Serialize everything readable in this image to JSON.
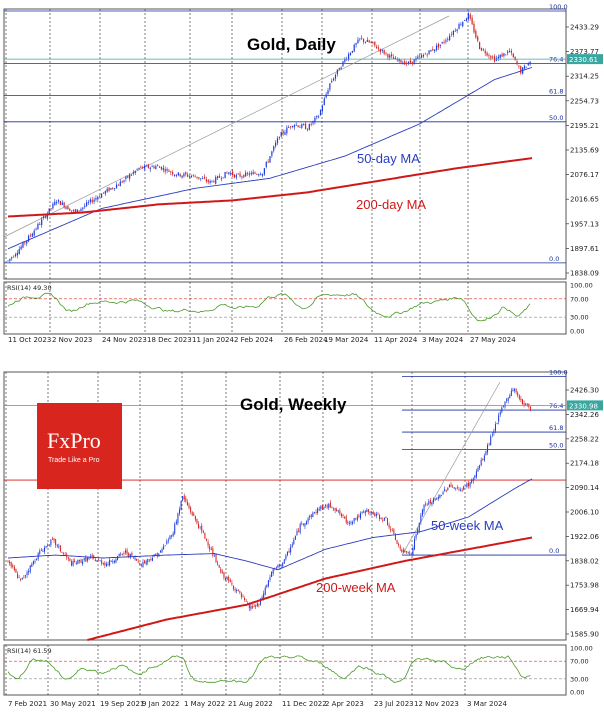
{
  "colors": {
    "bull": "#1e3cdc",
    "bear": "#d42020",
    "ma50": "#2a3cbf",
    "ma200": "#d01818",
    "fib": "#1a2e9c",
    "price_line": "#3aa6a0",
    "rsi_line": "#4a9a2a",
    "rsi_level": "#e03030",
    "logo_bg": "#d8261f"
  },
  "logo": {
    "brand": "FxPro",
    "tagline": "Trade Like a Pro"
  },
  "chart_data": [
    {
      "type": "candlestick",
      "title": "Gold, Daily",
      "ylim": [
        1785,
        2455
      ],
      "y_ticks": [
        "2433.29",
        "2373.77",
        "2314.25",
        "2254.73",
        "2195.21",
        "2135.69",
        "2076.17",
        "2016.65",
        "1957.13",
        "1897.61",
        "1838.09"
      ],
      "x_ticks": [
        "11 Oct 2023",
        "2 Nov 2023",
        "24 Nov 2023",
        "18 Dec 2023",
        "11 Jan 2024",
        "2 Feb 2024",
        "26 Feb 2024",
        "19 Mar 2024",
        "11 Apr 2024",
        "3 May 2024",
        "27 May 2024"
      ],
      "current_price": "2330.61",
      "last_fib_label": "76.4",
      "fib_levels": [
        {
          "label": "100.0",
          "value": 2450
        },
        {
          "label": "76.4",
          "value": 2320
        },
        {
          "label": "61.8",
          "value": 2240
        },
        {
          "label": "50.0",
          "value": 2175
        },
        {
          "label": "0.0",
          "value": 1825
        }
      ],
      "ma_labels": [
        "50-day MA",
        "200-day MA"
      ],
      "anchors": [
        [
          0,
          1830
        ],
        [
          8,
          1870
        ],
        [
          18,
          1930
        ],
        [
          26,
          1980
        ],
        [
          36,
          1950
        ],
        [
          48,
          1990
        ],
        [
          62,
          2030
        ],
        [
          70,
          2060
        ],
        [
          80,
          2065
        ],
        [
          90,
          2045
        ],
        [
          100,
          2040
        ],
        [
          108,
          2025
        ],
        [
          118,
          2050
        ],
        [
          122,
          2040
        ],
        [
          136,
          2050
        ],
        [
          145,
          2140
        ],
        [
          152,
          2170
        ],
        [
          160,
          2160
        ],
        [
          166,
          2190
        ],
        [
          172,
          2270
        ],
        [
          180,
          2330
        ],
        [
          188,
          2380
        ],
        [
          194,
          2370
        ],
        [
          206,
          2330
        ],
        [
          214,
          2320
        ],
        [
          222,
          2340
        ],
        [
          232,
          2370
        ],
        [
          240,
          2410
        ],
        [
          246,
          2440
        ],
        [
          252,
          2360
        ],
        [
          260,
          2330
        ],
        [
          268,
          2350
        ],
        [
          274,
          2300
        ],
        [
          280,
          2330
        ]
      ],
      "ma50_anchors": [
        [
          0,
          1860
        ],
        [
          50,
          1960
        ],
        [
          100,
          2010
        ],
        [
          140,
          2035
        ],
        [
          180,
          2090
        ],
        [
          220,
          2170
        ],
        [
          260,
          2280
        ],
        [
          280,
          2310
        ]
      ],
      "ma200_anchors": [
        [
          0,
          1940
        ],
        [
          40,
          1950
        ],
        [
          80,
          1970
        ],
        [
          120,
          1980
        ],
        [
          160,
          2000
        ],
        [
          200,
          2030
        ],
        [
          240,
          2060
        ],
        [
          280,
          2085
        ]
      ],
      "rsi": {
        "label": "RSI(14) 49.30",
        "ticks": [
          "100.00",
          "70.00",
          "30.00",
          "0.00"
        ],
        "levels": [
          70,
          30
        ]
      }
    },
    {
      "type": "candlestick",
      "title": "Gold,  Weekly",
      "ylim": [
        1530,
        2445
      ],
      "y_ticks": [
        "2426.30",
        "2342.26",
        "2258.22",
        "2174.18",
        "2090.14",
        "2006.10",
        "1922.06",
        "1838.02",
        "1753.98",
        "1669.94",
        "1585.90"
      ],
      "x_ticks": [
        "7 Feb 2021",
        "30 May 2021",
        "19 Sep 2021",
        "9 Jan 2022",
        "1 May 2022",
        "21 Aug 2022",
        "11 Dec 2022",
        "2 Apr 2023",
        "23 Jul 2023",
        "12 Nov 2023",
        "3 Mar 2024"
      ],
      "current_price": "2330.98",
      "last_fib_label": "76.4",
      "fib_levels": [
        {
          "label": "100.0",
          "value": 2430
        },
        {
          "label": "76.4",
          "value": 2315
        },
        {
          "label": "61.8",
          "value": 2240
        },
        {
          "label": "50.0",
          "value": 2180
        },
        {
          "label": "0.0",
          "value": 1820
        }
      ],
      "resistance_value": 2076,
      "ma_labels": [
        "50-week MA",
        "200-week MA"
      ],
      "anchors": [
        [
          0,
          1800
        ],
        [
          8,
          1730
        ],
        [
          20,
          1830
        ],
        [
          28,
          1870
        ],
        [
          40,
          1790
        ],
        [
          52,
          1810
        ],
        [
          62,
          1790
        ],
        [
          74,
          1830
        ],
        [
          84,
          1790
        ],
        [
          96,
          1830
        ],
        [
          104,
          1900
        ],
        [
          110,
          2020
        ],
        [
          116,
          1960
        ],
        [
          126,
          1860
        ],
        [
          134,
          1760
        ],
        [
          144,
          1700
        ],
        [
          152,
          1640
        ],
        [
          158,
          1650
        ],
        [
          166,
          1760
        ],
        [
          174,
          1800
        ],
        [
          184,
          1920
        ],
        [
          196,
          1980
        ],
        [
          204,
          1990
        ],
        [
          214,
          1930
        ],
        [
          226,
          1970
        ],
        [
          238,
          1940
        ],
        [
          248,
          1830
        ],
        [
          254,
          1830
        ],
        [
          262,
          1990
        ],
        [
          270,
          2010
        ],
        [
          278,
          2060
        ],
        [
          284,
          2040
        ],
        [
          292,
          2070
        ],
        [
          300,
          2160
        ],
        [
          306,
          2250
        ],
        [
          312,
          2330
        ],
        [
          318,
          2390
        ],
        [
          324,
          2340
        ],
        [
          330,
          2320
        ]
      ],
      "ma50_anchors": [
        [
          0,
          1810
        ],
        [
          30,
          1820
        ],
        [
          60,
          1810
        ],
        [
          100,
          1820
        ],
        [
          130,
          1825
        ],
        [
          150,
          1800
        ],
        [
          170,
          1770
        ],
        [
          200,
          1840
        ],
        [
          230,
          1880
        ],
        [
          260,
          1900
        ],
        [
          290,
          1950
        ],
        [
          320,
          2050
        ],
        [
          330,
          2080
        ]
      ],
      "ma200_anchors": [
        [
          50,
          1530
        ],
        [
          100,
          1600
        ],
        [
          150,
          1650
        ],
        [
          200,
          1740
        ],
        [
          250,
          1800
        ],
        [
          300,
          1850
        ],
        [
          330,
          1880
        ]
      ],
      "rsi": {
        "label": "RSI(14) 61.59",
        "ticks": [
          "100.00",
          "70.00",
          "30.00",
          "0.00"
        ],
        "levels": [
          70,
          30
        ]
      }
    }
  ]
}
